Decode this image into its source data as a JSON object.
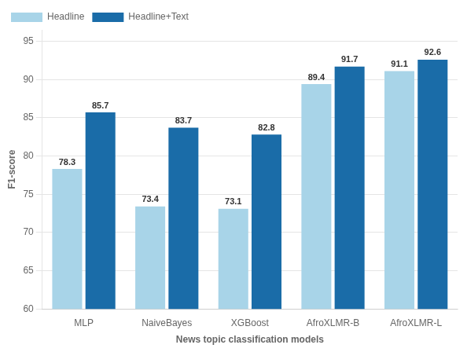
{
  "chart_data": {
    "type": "bar",
    "categories": [
      "MLP",
      "NaiveBayes",
      "XGBoost",
      "AfroXLMR-B",
      "AfroXLMR-L"
    ],
    "series": [
      {
        "name": "Headline",
        "color": "#a8d4e8",
        "values": [
          78.3,
          73.4,
          73.1,
          89.4,
          91.1
        ]
      },
      {
        "name": "Headline+Text",
        "color": "#1a6ca8",
        "values": [
          85.7,
          83.7,
          82.8,
          91.7,
          92.6
        ]
      }
    ],
    "xlabel": "News topic classification models",
    "ylabel": "F1-score",
    "ylim": [
      60,
      96.5
    ],
    "yticks": [
      60,
      65,
      70,
      75,
      80,
      85,
      90,
      95
    ],
    "grid": true,
    "legend": "upper left",
    "data_labels": true
  }
}
